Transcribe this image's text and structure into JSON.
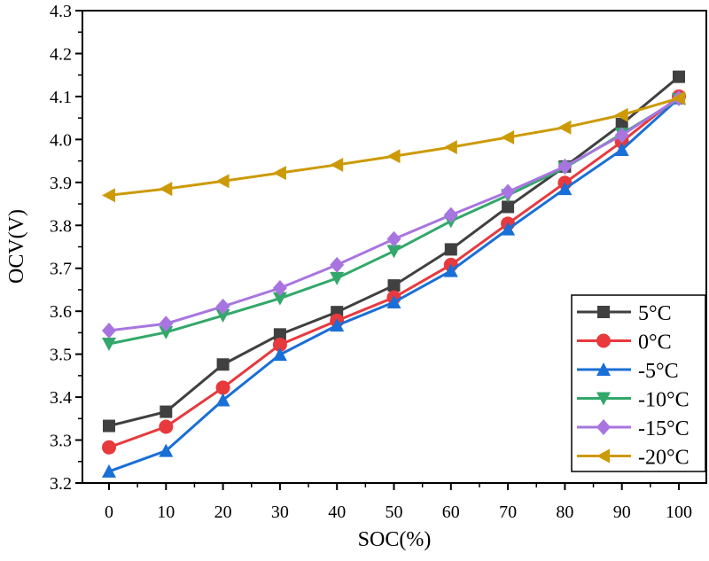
{
  "chart_data": {
    "type": "line",
    "xlabel": "SOC(%)",
    "ylabel": "OCV(V)",
    "xlim": [
      -5,
      105
    ],
    "ylim": [
      3.2,
      4.3
    ],
    "x": [
      0,
      10,
      20,
      30,
      40,
      50,
      60,
      70,
      80,
      90,
      100
    ],
    "x_ticks": [
      "0",
      "10",
      "20",
      "30",
      "40",
      "50",
      "60",
      "70",
      "80",
      "90",
      "100"
    ],
    "y_ticks": [
      "3.2",
      "3.3",
      "3.4",
      "3.5",
      "3.6",
      "3.7",
      "3.8",
      "3.9",
      "4.0",
      "4.1",
      "4.2",
      "4.3"
    ],
    "grid": false,
    "legend_position": "bottom-right",
    "series": [
      {
        "name": "5°C",
        "color": "#404040",
        "marker": "square",
        "values": [
          3.333,
          3.366,
          3.476,
          3.546,
          3.598,
          3.66,
          3.744,
          3.843,
          3.937,
          4.036,
          4.146
        ]
      },
      {
        "name": "0°C",
        "color": "#e8393d",
        "marker": "circle",
        "values": [
          3.283,
          3.331,
          3.422,
          3.522,
          3.578,
          3.632,
          3.708,
          3.804,
          3.899,
          3.995,
          4.1
        ]
      },
      {
        "name": "-5°C",
        "color": "#1a6fd6",
        "marker": "triangle-up",
        "values": [
          3.227,
          3.275,
          3.393,
          3.499,
          3.567,
          3.621,
          3.694,
          3.791,
          3.885,
          3.976,
          4.096
        ]
      },
      {
        "name": "-10°C",
        "color": "#32a86a",
        "marker": "triangle-down",
        "values": [
          3.524,
          3.551,
          3.59,
          3.63,
          3.677,
          3.74,
          3.81,
          3.87,
          3.934,
          4.013,
          4.094
        ]
      },
      {
        "name": "-15°C",
        "color": "#a875e0",
        "marker": "diamond",
        "values": [
          3.555,
          3.571,
          3.611,
          3.654,
          3.708,
          3.768,
          3.824,
          3.878,
          3.937,
          4.01,
          4.096
        ]
      },
      {
        "name": "-20°C",
        "color": "#cc9a06",
        "marker": "triangle-left",
        "values": [
          3.87,
          3.885,
          3.903,
          3.922,
          3.941,
          3.961,
          3.982,
          4.005,
          4.028,
          4.057,
          4.096
        ]
      }
    ]
  }
}
